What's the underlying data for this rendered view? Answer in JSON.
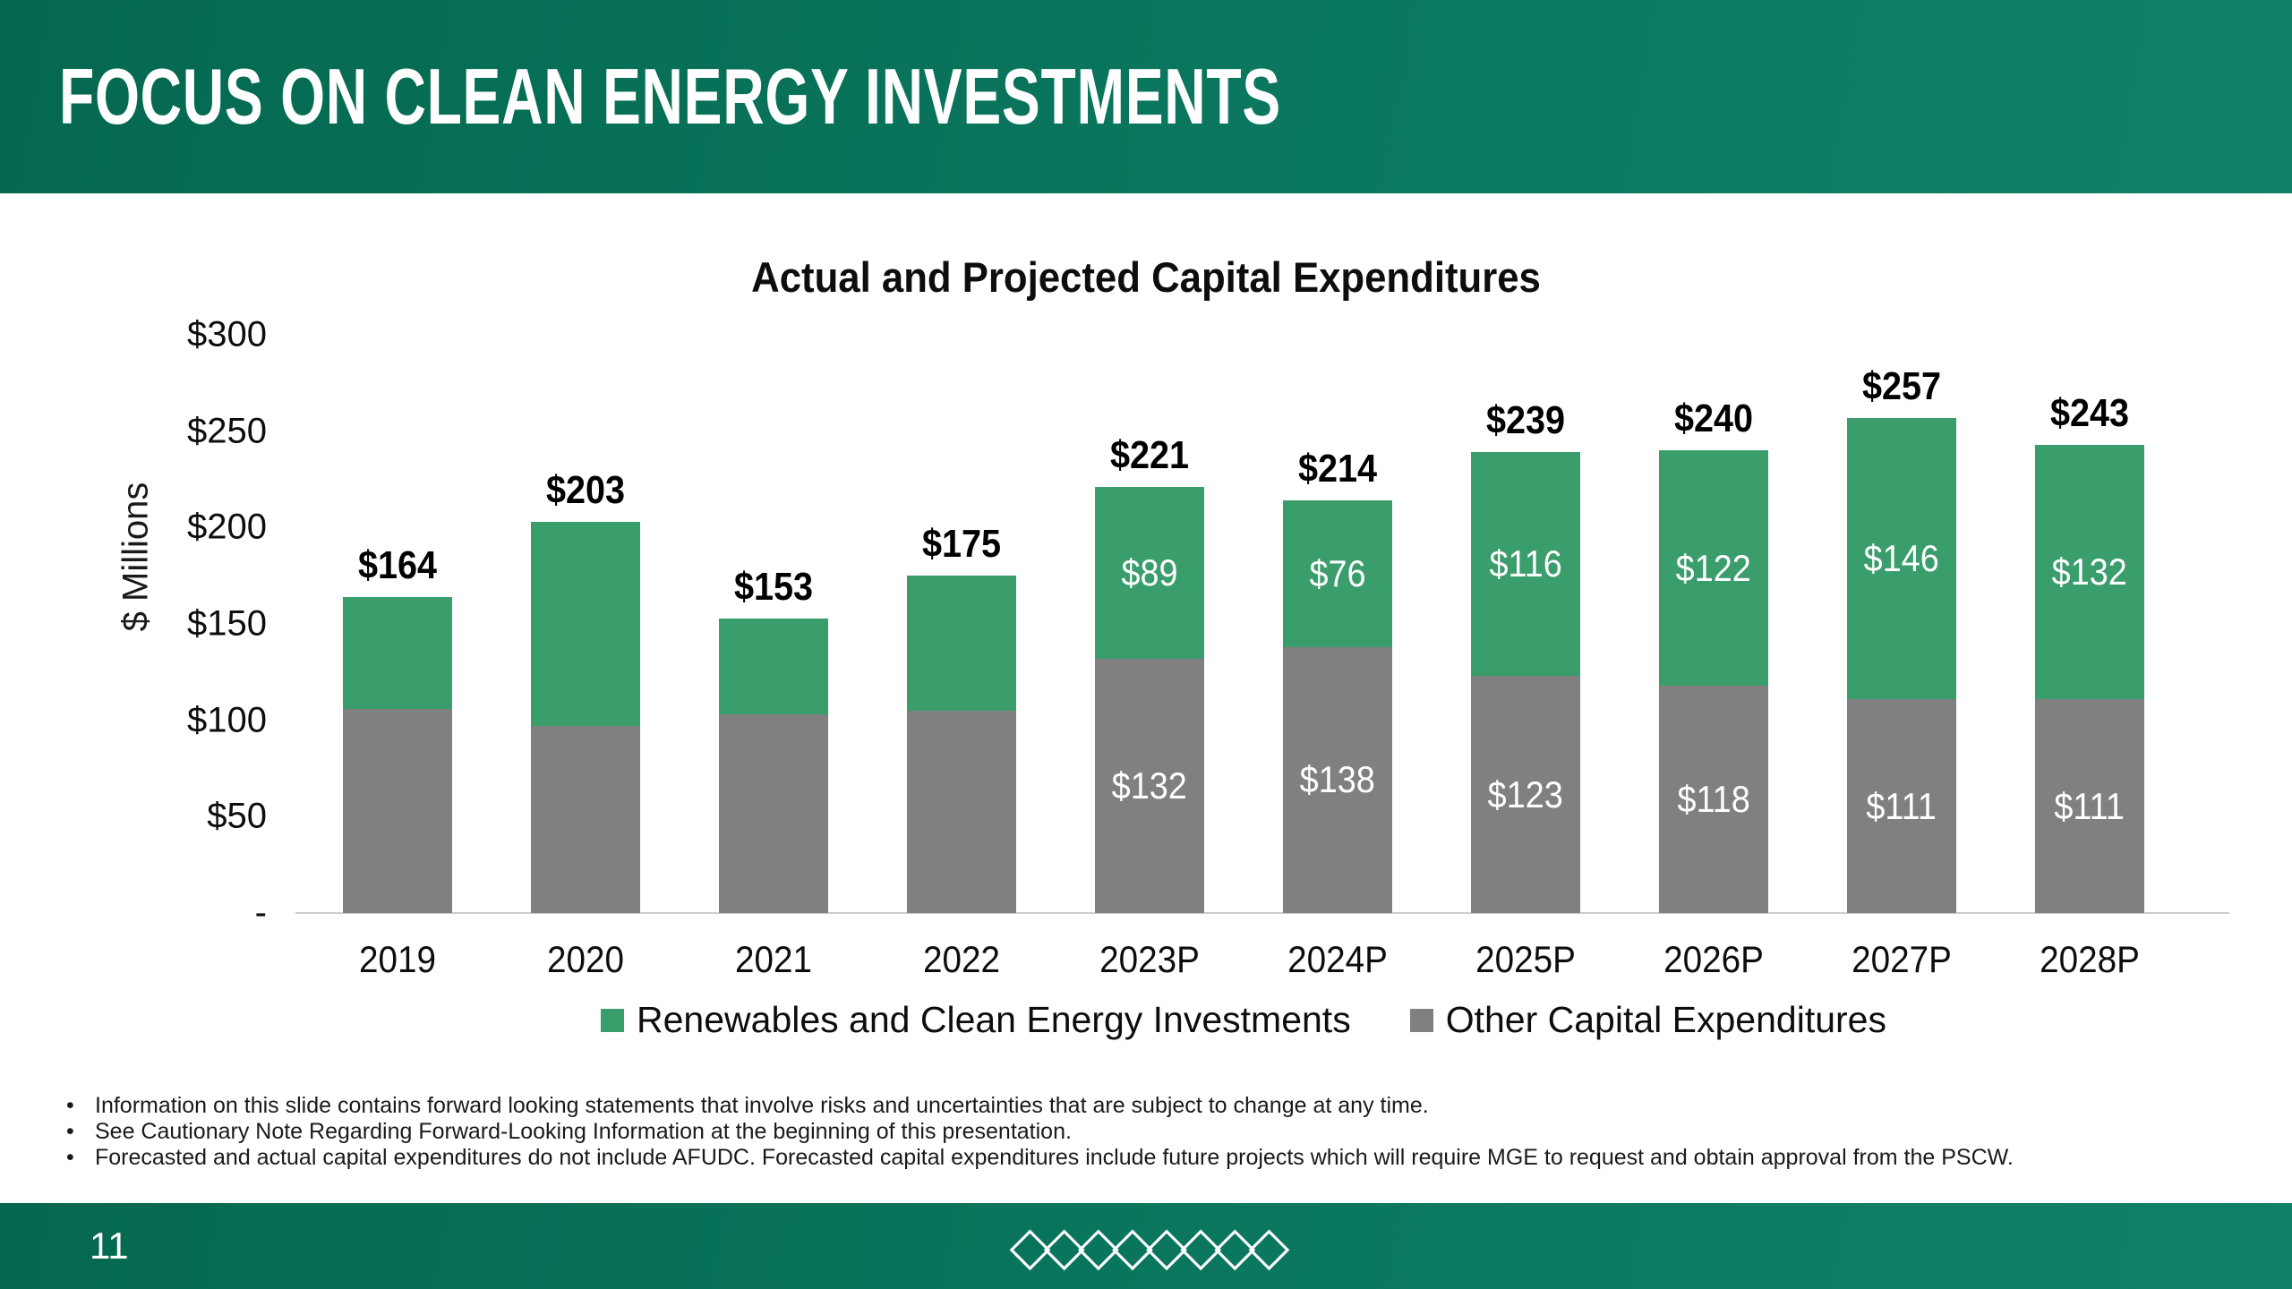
{
  "slide": {
    "header": {
      "title": "FOCUS ON CLEAN ENERGY INVESTMENTS"
    },
    "chart": {
      "legend": [
        {
          "label": "Renewables and Clean Energy Investments",
          "color": "#3a9d6c"
        },
        {
          "label": "Other Capital Expenditures",
          "color": "#808080"
        }
      ]
    },
    "footnotes": [
      "Information on this slide contains forward looking statements that involve risks and uncertainties that are subject to change at any time.",
      "See Cautionary Note Regarding Forward-Looking Information at the beginning of this presentation.",
      "Forecasted and actual capital expenditures do not include AFUDC. Forecasted capital expenditures include future projects which will require MGE to request and obtain approval from the PSCW."
    ],
    "footer": {
      "page_number": "11",
      "diamonds": "◇◇◇◇◇◇◇◇"
    }
  },
  "chart_data": {
    "type": "bar",
    "stacked": true,
    "title": "Actual and Projected Capital Expenditures",
    "categories": [
      "2019",
      "2020",
      "2021",
      "2022",
      "2023P",
      "2024P",
      "2025P",
      "2026P",
      "2027P",
      "2028P"
    ],
    "series": [
      {
        "name": "Other Capital Expenditures",
        "color": "#808080",
        "values": [
          106,
          97,
          103,
          105,
          132,
          138,
          123,
          118,
          111,
          111
        ],
        "labels": [
          "",
          "",
          "",
          "",
          "$132",
          "$138",
          "$123",
          "$118",
          "$111",
          "$111"
        ]
      },
      {
        "name": "Renewables and Clean Energy Investments",
        "color": "#3a9d6c",
        "values": [
          58,
          106,
          50,
          70,
          89,
          76,
          116,
          122,
          146,
          132
        ],
        "labels": [
          "",
          "",
          "",
          "",
          "$89",
          "$76",
          "$116",
          "$122",
          "$146",
          "$132"
        ]
      }
    ],
    "totals": [
      164,
      203,
      153,
      175,
      221,
      214,
      239,
      240,
      257,
      243
    ],
    "total_labels": [
      "$164",
      "$203",
      "$153",
      "$175",
      "$221",
      "$214",
      "$239",
      "$240",
      "$257",
      "$243"
    ],
    "xlabel": "",
    "ylabel": "$ Millions",
    "ylim": [
      0,
      300
    ],
    "ytick_labels": [
      "$300",
      "$250",
      "$200",
      "$150",
      "$100",
      "$50",
      "-"
    ],
    "ytick_values": [
      300,
      250,
      200,
      150,
      100,
      50,
      0
    ],
    "grid": false,
    "legend_position": "bottom"
  }
}
